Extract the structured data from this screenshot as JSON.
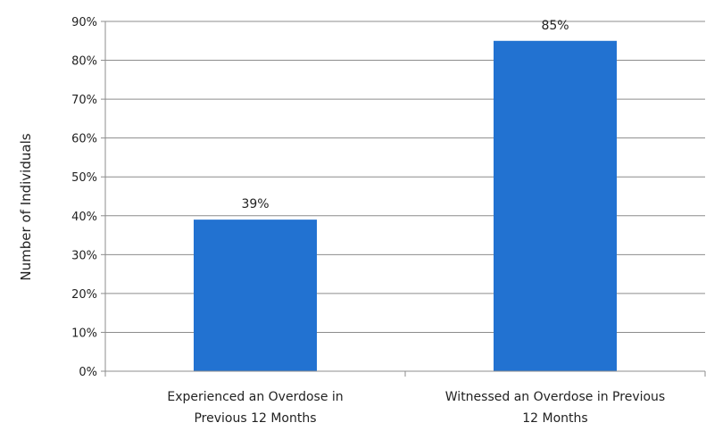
{
  "chart_data": {
    "type": "bar",
    "title": "",
    "xlabel": "",
    "ylabel": "Number of Individuals",
    "ylim": [
      0,
      90
    ],
    "yticks": [
      0,
      10,
      20,
      30,
      40,
      50,
      60,
      70,
      80,
      90
    ],
    "ytick_format": "percent",
    "grid": true,
    "legend": "none",
    "bar_color": "#2272d1",
    "categories": [
      [
        "Experienced an Overdose in",
        "Previous 12 Months"
      ],
      [
        "Witnessed an Overdose in Previous",
        "12 Months"
      ]
    ],
    "values": [
      39,
      85
    ],
    "data_labels": [
      "39%",
      "85%"
    ]
  }
}
